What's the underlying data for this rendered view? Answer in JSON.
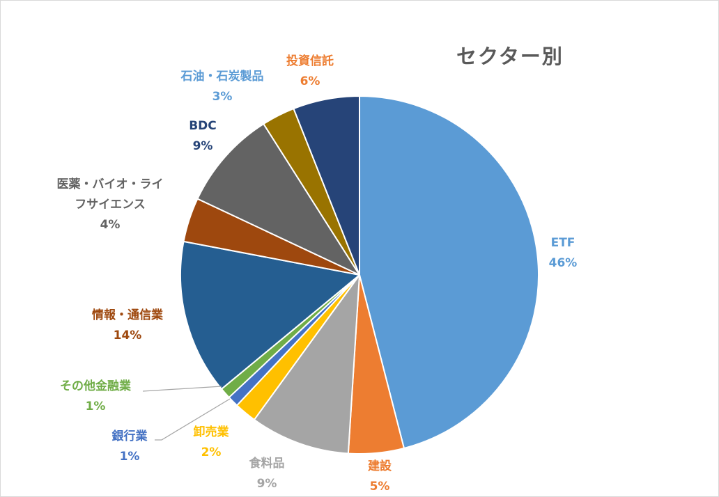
{
  "chart_data": {
    "type": "pie",
    "title": "セクター別",
    "start_angle_deg": 0,
    "direction": "clockwise",
    "slices": [
      {
        "name": "ETF",
        "value": 46,
        "label": "46%",
        "color": "#5b9bd5",
        "label_color": "#5b9bd5"
      },
      {
        "name": "建設",
        "value": 5,
        "label": "5%",
        "color": "#ed7d31",
        "label_color": "#ed7d31"
      },
      {
        "name": "食料品",
        "value": 9,
        "label": "9%",
        "color": "#a5a5a5",
        "label_color": "#a5a5a5"
      },
      {
        "name": "卸売業",
        "value": 2,
        "label": "2%",
        "color": "#ffc000",
        "label_color": "#ffc000"
      },
      {
        "name": "銀行業",
        "value": 1,
        "label": "1%",
        "color": "#4472c4",
        "label_color": "#4472c4"
      },
      {
        "name": "その他金融業",
        "value": 1,
        "label": "1%",
        "color": "#70ad47",
        "label_color": "#70ad47"
      },
      {
        "name": "情報・通信業",
        "value": 14,
        "label": "14%",
        "color": "#255e91",
        "label_color": "#9e480e"
      },
      {
        "name": "医薬・バイオ・ライフサイエンス",
        "name_lines": [
          "医薬・バイオ・ライ",
          "フサイエンス"
        ],
        "value": 4,
        "label": "4%",
        "color": "#9e480e",
        "label_color": "#636363"
      },
      {
        "name": "BDC",
        "value": 9,
        "label": "9%",
        "color": "#636363",
        "label_color": "#264478"
      },
      {
        "name": "石油・石炭製品",
        "value": 3,
        "label": "3%",
        "color": "#997300",
        "label_color": "#5b9bd5"
      },
      {
        "name": "投資信託",
        "value": 6,
        "label": "6%",
        "color": "#264478",
        "label_color": "#ed7d31"
      }
    ]
  }
}
